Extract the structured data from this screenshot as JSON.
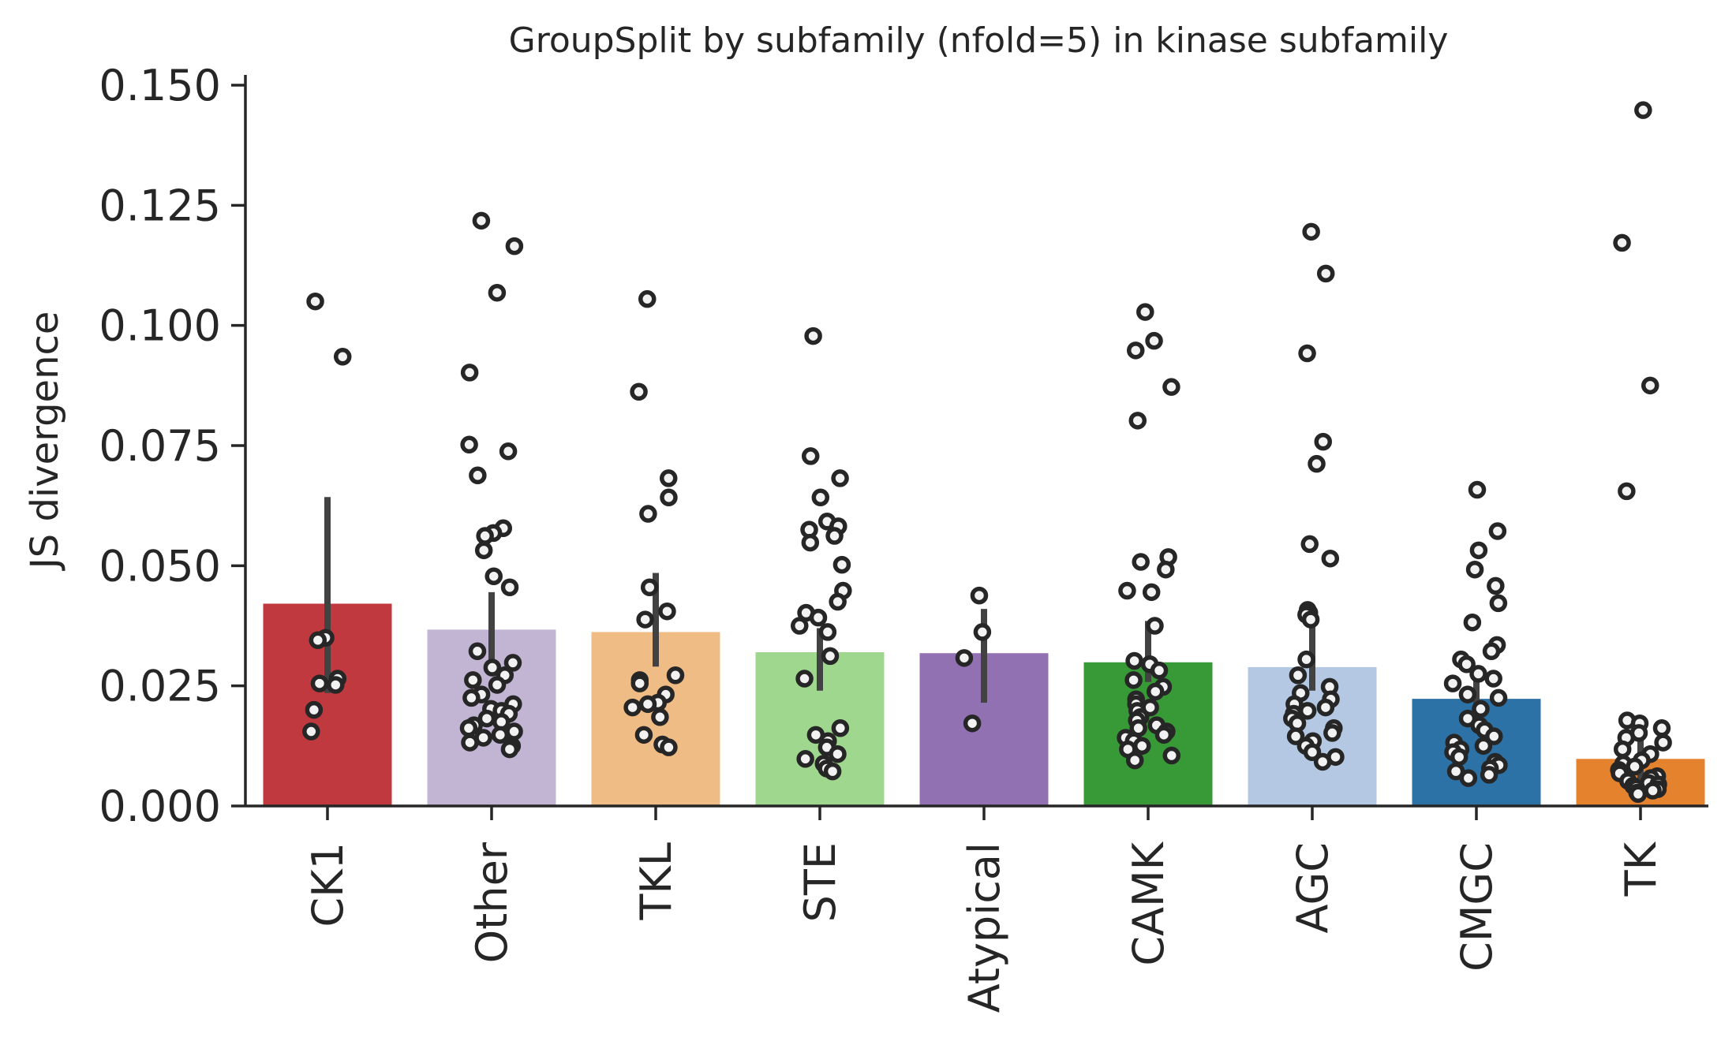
{
  "chart_data": {
    "type": "bar",
    "title": "GroupSplit by subfamily (nfold=5) in kinase subfamily",
    "ylabel": "JS divergence",
    "xlabel": "",
    "ylim": [
      0,
      0.152
    ],
    "yticks": [
      "0.000",
      "0.025",
      "0.050",
      "0.075",
      "0.100",
      "0.125",
      "0.150"
    ],
    "grid": false,
    "legend": "none",
    "categories": [
      "CK1",
      "Other",
      "TKL",
      "STE",
      "Atypical",
      "CAMK",
      "AGC",
      "CMGC",
      "TK"
    ],
    "values": [
      0.0421,
      0.0367,
      0.0362,
      0.032,
      0.0318,
      0.0299,
      0.0289,
      0.0223,
      0.0098
    ],
    "ci": [
      [
        0.0235,
        0.0643
      ],
      [
        0.0298,
        0.0445
      ],
      [
        0.029,
        0.0485
      ],
      [
        0.024,
        0.037
      ],
      [
        0.0215,
        0.041
      ],
      [
        0.0258,
        0.0385
      ],
      [
        0.024,
        0.0372
      ],
      [
        0.019,
        0.0265
      ],
      [
        0.0055,
        0.0155
      ]
    ],
    "colors": [
      "#c0393f",
      "#c2b4d3",
      "#f0bc85",
      "#a0d78f",
      "#9271b3",
      "#389a37",
      "#b4c8e3",
      "#2d72a7",
      "#e5822d"
    ],
    "points": [
      [
        0.105,
        0.0935,
        0.035,
        0.0345,
        0.0265,
        0.0255,
        0.0252,
        0.02,
        0.0155
      ],
      [
        0.1218,
        0.1165,
        0.1068,
        0.0902,
        0.0752,
        0.0738,
        0.0688,
        0.0578,
        0.0568,
        0.0562,
        0.0532,
        0.0478,
        0.0455,
        0.0322,
        0.0298,
        0.0288,
        0.0272,
        0.0262,
        0.0252,
        0.0232,
        0.0225,
        0.0212,
        0.0202,
        0.0198,
        0.0192,
        0.0182,
        0.0175,
        0.0168,
        0.0162,
        0.0155,
        0.0148,
        0.0142,
        0.0132,
        0.0125,
        0.0118
      ],
      [
        0.1055,
        0.0862,
        0.0682,
        0.0642,
        0.0608,
        0.0455,
        0.0405,
        0.0388,
        0.0272,
        0.0262,
        0.0255,
        0.0232,
        0.0215,
        0.0212,
        0.0205,
        0.0185,
        0.0148,
        0.0128,
        0.0122
      ],
      [
        0.0978,
        0.0728,
        0.0682,
        0.0642,
        0.0592,
        0.0582,
        0.0575,
        0.0562,
        0.0548,
        0.0502,
        0.0448,
        0.0425,
        0.0402,
        0.0392,
        0.0375,
        0.0362,
        0.0312,
        0.0265,
        0.0162,
        0.0148,
        0.0135,
        0.0122,
        0.0108,
        0.0098,
        0.0088,
        0.0078,
        0.0072
      ],
      [
        0.0438,
        0.0362,
        0.0308,
        0.0172
      ],
      [
        0.1028,
        0.0968,
        0.0948,
        0.0872,
        0.0802,
        0.0518,
        0.0508,
        0.0492,
        0.0448,
        0.0445,
        0.0375,
        0.0302,
        0.0295,
        0.0282,
        0.0262,
        0.0248,
        0.0238,
        0.0222,
        0.0212,
        0.0205,
        0.0198,
        0.0185,
        0.0178,
        0.0168,
        0.0162,
        0.0155,
        0.0148,
        0.0142,
        0.0135,
        0.0125,
        0.0118,
        0.0105,
        0.0095
      ],
      [
        0.1195,
        0.1108,
        0.0942,
        0.0758,
        0.0712,
        0.0545,
        0.0515,
        0.0408,
        0.0402,
        0.0398,
        0.0388,
        0.0305,
        0.0272,
        0.0248,
        0.0235,
        0.0222,
        0.0212,
        0.0205,
        0.0198,
        0.0192,
        0.0182,
        0.0172,
        0.0162,
        0.0152,
        0.0145,
        0.0135,
        0.0125,
        0.0112,
        0.0102,
        0.0092
      ],
      [
        0.0658,
        0.0572,
        0.0532,
        0.0492,
        0.0458,
        0.0422,
        0.0382,
        0.0335,
        0.0322,
        0.0305,
        0.0295,
        0.0275,
        0.0265,
        0.0255,
        0.0232,
        0.0225,
        0.0202,
        0.0182,
        0.0168,
        0.0158,
        0.0145,
        0.0132,
        0.0125,
        0.0118,
        0.0112,
        0.0102,
        0.0092,
        0.0085,
        0.0078,
        0.0072,
        0.0065,
        0.0058
      ],
      [
        0.1448,
        0.1172,
        0.0875,
        0.0655,
        0.0178,
        0.0172,
        0.0162,
        0.0152,
        0.0142,
        0.0132,
        0.0118,
        0.0108,
        0.0095,
        0.0088,
        0.0082,
        0.0075,
        0.0068,
        0.0062,
        0.0058,
        0.0052,
        0.0048,
        0.0045,
        0.0042,
        0.0038,
        0.0035,
        0.0032,
        0.0028,
        0.0025
      ]
    ]
  }
}
